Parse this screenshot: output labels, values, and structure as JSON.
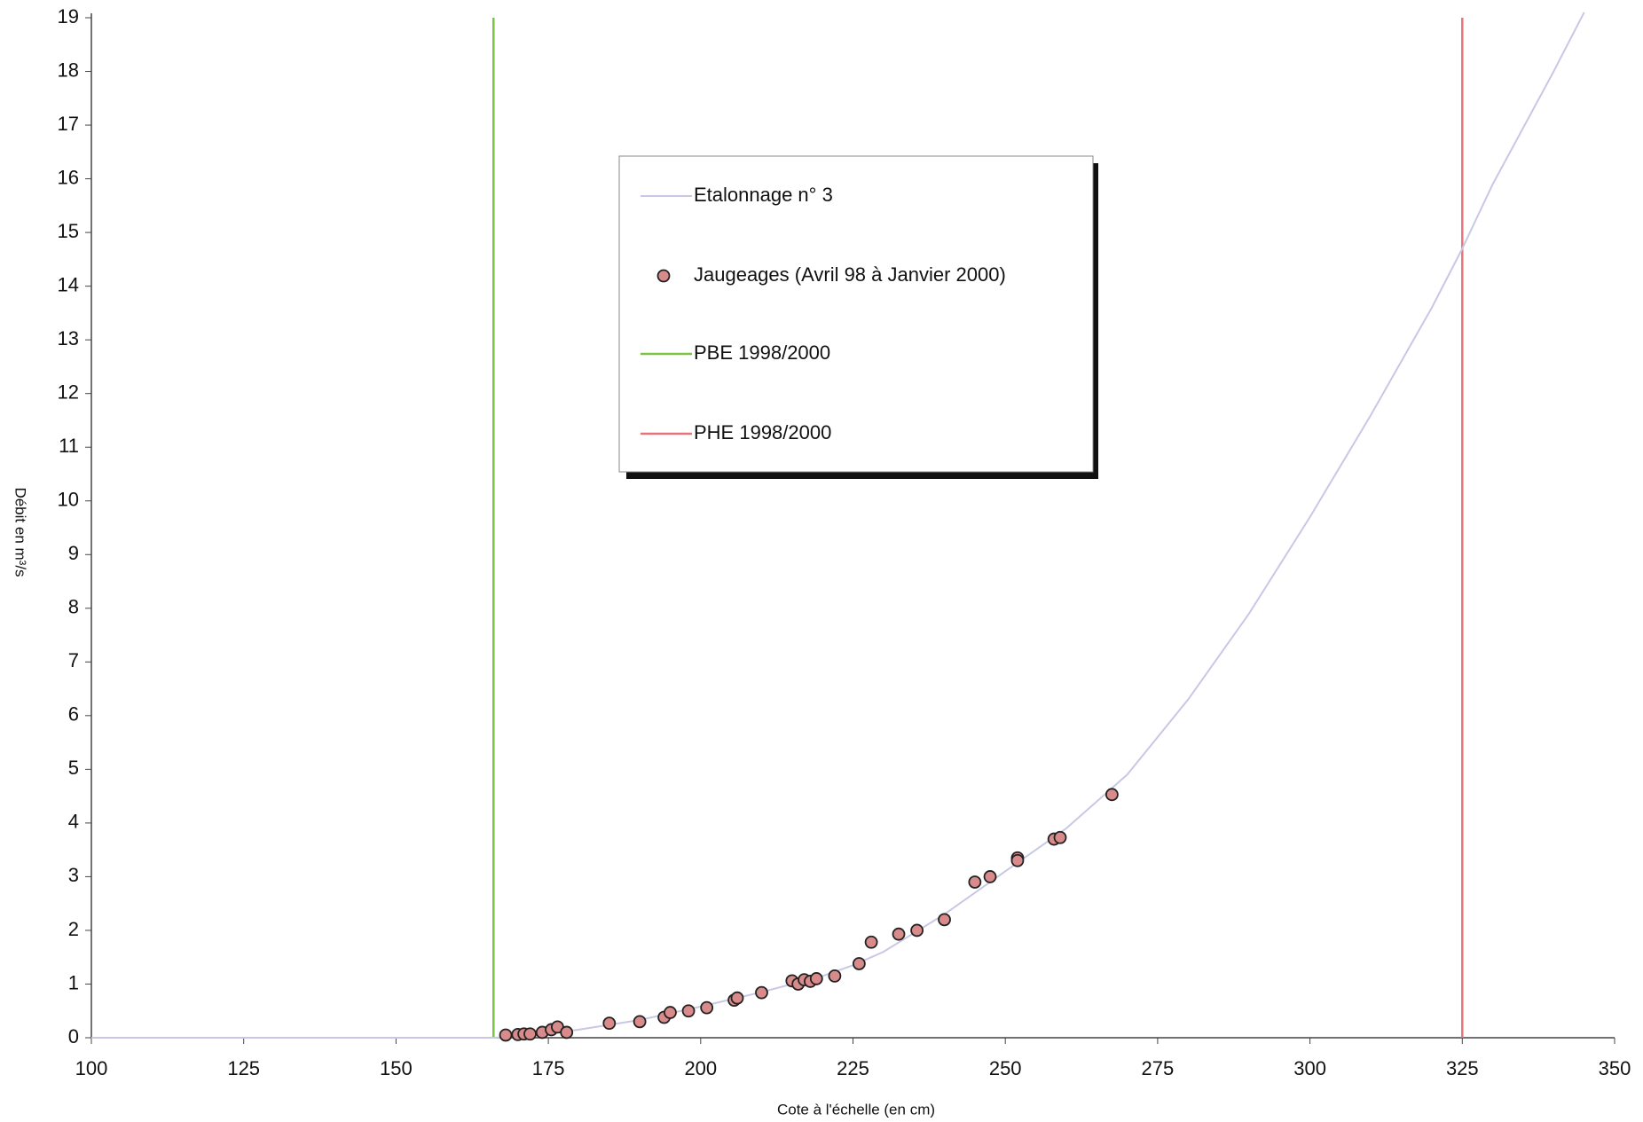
{
  "chart_data": {
    "type": "scatter",
    "x_label": "Cote à l'échelle (en cm)",
    "y_label": "Débit en m³/s",
    "xlim": [
      100,
      350
    ],
    "xticks": [
      100,
      125,
      150,
      175,
      200,
      225,
      250,
      275,
      300,
      325,
      350
    ],
    "ylim": [
      0,
      19
    ],
    "yticks": [
      0,
      1,
      2,
      3,
      4,
      5,
      6,
      7,
      8,
      9,
      10,
      11,
      12,
      13,
      14,
      15,
      16,
      17,
      18,
      19
    ],
    "grid": false,
    "curve": {
      "name": "Etalonnage n° 3",
      "color": "#c8c8e6",
      "x": [
        100,
        160,
        166,
        170,
        175,
        180,
        190,
        200,
        210,
        220,
        225,
        230,
        240,
        250,
        260,
        270,
        280,
        290,
        300,
        310,
        320,
        325,
        330,
        340,
        345
      ],
      "values": [
        0,
        0,
        0,
        0.02,
        0.08,
        0.15,
        0.33,
        0.58,
        0.85,
        1.15,
        1.35,
        1.6,
        2.3,
        3.1,
        3.9,
        4.9,
        6.3,
        7.9,
        9.7,
        11.6,
        13.6,
        14.7,
        15.9,
        18.0,
        19.1
      ]
    },
    "series": [
      {
        "name": "Jaugeages (Avril 98 à Janvier 2000)",
        "color": "#d98a8a",
        "x": [
          168,
          170,
          171,
          172,
          174,
          175.5,
          176.5,
          178,
          185,
          190,
          194,
          195,
          198,
          201,
          205.5,
          206,
          210,
          215,
          216,
          217,
          218,
          219,
          222,
          226,
          228,
          232.5,
          235.5,
          240,
          245,
          247.5,
          252,
          252,
          258,
          259,
          267.5
        ],
        "values": [
          0.05,
          0.06,
          0.07,
          0.07,
          0.1,
          0.15,
          0.2,
          0.1,
          0.27,
          0.3,
          0.38,
          0.47,
          0.5,
          0.56,
          0.7,
          0.74,
          0.84,
          1.06,
          1.0,
          1.08,
          1.05,
          1.1,
          1.15,
          1.38,
          1.78,
          1.93,
          2.0,
          2.2,
          2.9,
          3.0,
          3.35,
          3.3,
          3.7,
          3.73,
          4.53
        ]
      }
    ],
    "vlines": [
      {
        "name": "PBE 1998/2000",
        "color": "#7dc242",
        "x": 166
      },
      {
        "name": "PHE 1998/2000",
        "color": "#e8737a",
        "x": 325
      }
    ]
  }
}
